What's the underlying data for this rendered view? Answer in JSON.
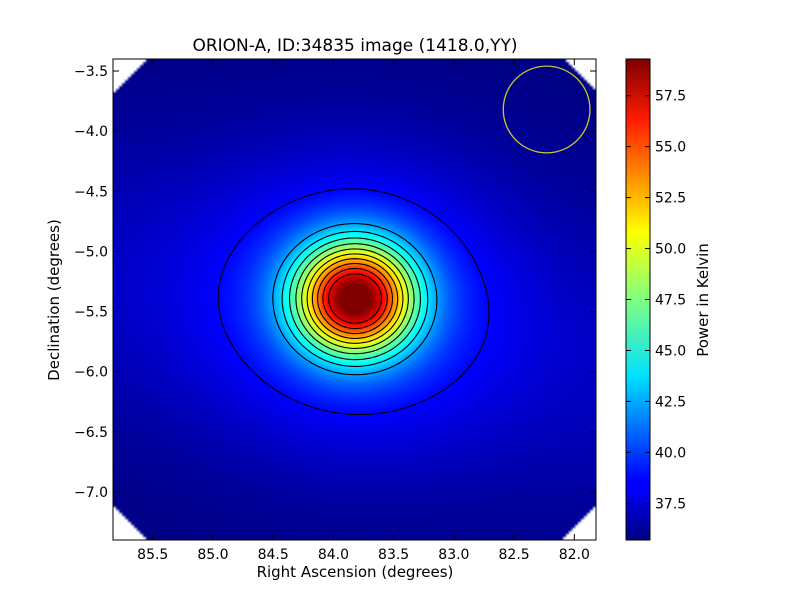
{
  "chart_data": {
    "type": "heatmap",
    "title": "ORION-A, ID:34835 image (1418.0,YY)",
    "xlabel": "Right Ascension (degrees)",
    "ylabel": "Declination (degrees)",
    "xlim": [
      85.83,
      81.82
    ],
    "ylim": [
      -7.4,
      -3.4
    ],
    "x_ticks": [
      85.5,
      85.0,
      84.5,
      84.0,
      83.5,
      83.0,
      82.5,
      82.0
    ],
    "x_tick_labels": [
      "85.5",
      "85.0",
      "84.5",
      "84.0",
      "83.5",
      "83.0",
      "82.5",
      "82.0"
    ],
    "y_ticks": [
      -3.5,
      -4.0,
      -4.5,
      -5.0,
      -5.5,
      -6.0,
      -6.5,
      -7.0
    ],
    "y_tick_labels": [
      "−3.5",
      "−4.0",
      "−4.5",
      "−5.0",
      "−5.5",
      "−6.0",
      "−6.5",
      "−7.0"
    ],
    "colormap": "jet",
    "colorbar": {
      "label": "Power in Kelvin",
      "range": [
        35.7,
        59.3
      ],
      "ticks": [
        37.5,
        40.0,
        42.5,
        45.0,
        47.5,
        50.0,
        52.5,
        55.0,
        57.5
      ],
      "tick_labels": [
        "37.5",
        "40.0",
        "42.5",
        "45.0",
        "47.5",
        "50.0",
        "52.5",
        "55.0",
        "57.5"
      ]
    },
    "source": {
      "ra": 83.82,
      "dec": -5.39,
      "peak_kelvin": 59.3,
      "background_kelvin": 35.7,
      "sigma_ra_deg": 0.34,
      "sigma_dec_deg": 0.32
    },
    "contour_levels": [
      38.7,
      42.4,
      44.0,
      45.6,
      47.2,
      48.8,
      50.4,
      52.0,
      53.6,
      55.2,
      56.8
    ],
    "beam_circle": {
      "ra": 82.23,
      "dec": -3.82,
      "radius_deg": 0.36,
      "color": "#c8c832"
    },
    "contour_color": "#000000",
    "grid": false
  }
}
